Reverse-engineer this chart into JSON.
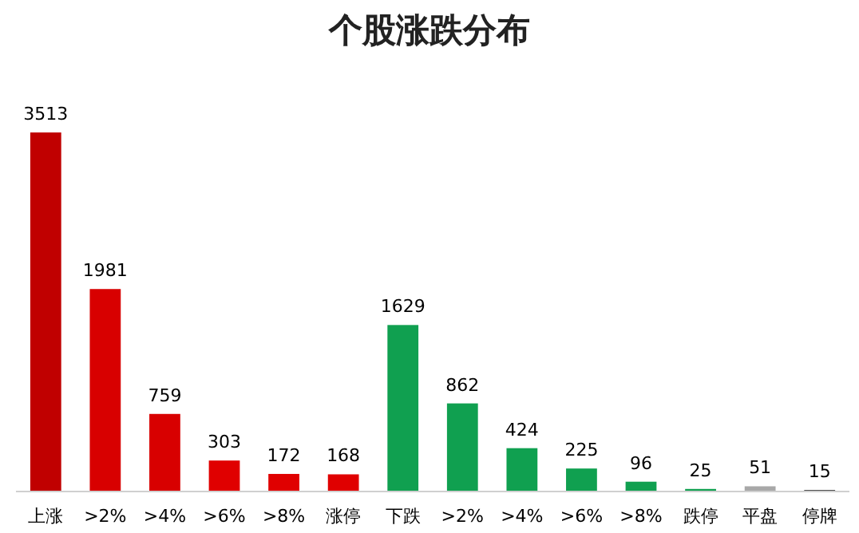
{
  "chart_data": {
    "type": "bar",
    "title": "个股涨跌分布",
    "categories": [
      "上涨",
      ">2%",
      ">4%",
      ">6%",
      ">8%",
      "涨停",
      "下跌",
      ">2%",
      ">4%",
      ">6%",
      ">8%",
      "跌停",
      "平盘",
      "停牌"
    ],
    "values": [
      3513,
      1981,
      759,
      303,
      172,
      168,
      1629,
      862,
      424,
      225,
      96,
      25,
      51,
      15
    ],
    "colors": [
      "#c00000",
      "#d80000",
      "#d80000",
      "#e00000",
      "#e00000",
      "#e00000",
      "#10a050",
      "#10a050",
      "#10a050",
      "#10a050",
      "#10a050",
      "#10a050",
      "#a8a8a8",
      "#404040"
    ],
    "data_labels": true
  }
}
